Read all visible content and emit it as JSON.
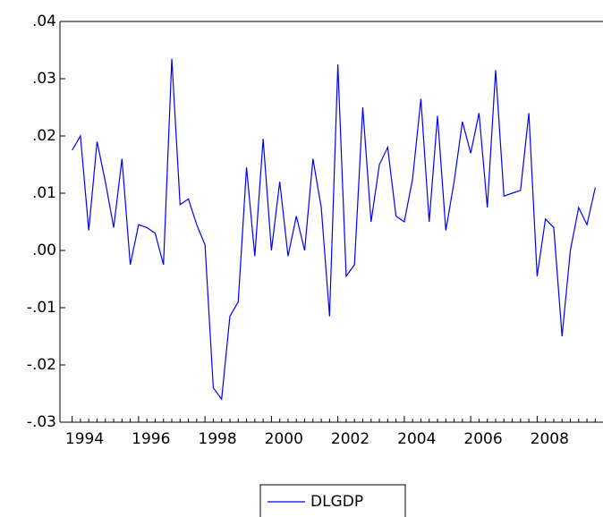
{
  "chart_data": {
    "type": "line",
    "categories": [
      "1994",
      null,
      null,
      null,
      null,
      null,
      null,
      null,
      "1996",
      null,
      null,
      null,
      null,
      null,
      null,
      null,
      "1998",
      null,
      null,
      null,
      null,
      null,
      null,
      null,
      "2000",
      null,
      null,
      null,
      null,
      null,
      null,
      null,
      "2002",
      null,
      null,
      null,
      null,
      null,
      null,
      null,
      "2004",
      null,
      null,
      null,
      null,
      null,
      null,
      null,
      "2006",
      null,
      null,
      null,
      null,
      null,
      null,
      null,
      "2008",
      null,
      null,
      null,
      null,
      null,
      null,
      null
    ],
    "series": [
      {
        "name": "DLGDP",
        "color": "#0000ff",
        "values": [
          0.0175,
          0.02,
          0.0035,
          0.019,
          0.012,
          0.004,
          0.016,
          -0.0025,
          0.0045,
          0.004,
          0.003,
          -0.0025,
          0.0335,
          0.008,
          0.009,
          0.0045,
          0.001,
          -0.024,
          -0.026,
          -0.0115,
          -0.009,
          0.0145,
          -0.001,
          0.0195,
          0.0,
          0.012,
          -0.001,
          0.006,
          0.0,
          0.016,
          0.0075,
          -0.0115,
          0.0325,
          -0.0045,
          -0.0025,
          0.025,
          0.005,
          0.015,
          0.018,
          0.006,
          0.005,
          0.0125,
          0.0265,
          0.005,
          0.0235,
          0.0035,
          0.012,
          0.0225,
          0.017,
          0.024,
          0.0075,
          0.0315,
          0.0095,
          0.01,
          0.0105,
          0.024,
          -0.0045,
          0.0055,
          0.004,
          -0.015,
          0.0,
          0.0075,
          0.0045,
          0.011
        ]
      }
    ],
    "ylim": [
      -0.03,
      0.04
    ],
    "yticks": [
      {
        "value": -0.03,
        "label": "-.03"
      },
      {
        "value": -0.02,
        "label": "-.02"
      },
      {
        "value": -0.01,
        "label": "-.01"
      },
      {
        "value": 0,
        "label": ".00"
      },
      {
        "value": 0.01,
        "label": ".01"
      },
      {
        "value": 0.02,
        "label": ".02"
      },
      {
        "value": 0.03,
        "label": ".03"
      },
      {
        "value": 0.04,
        "label": ".04"
      }
    ],
    "legend": "bottom"
  }
}
